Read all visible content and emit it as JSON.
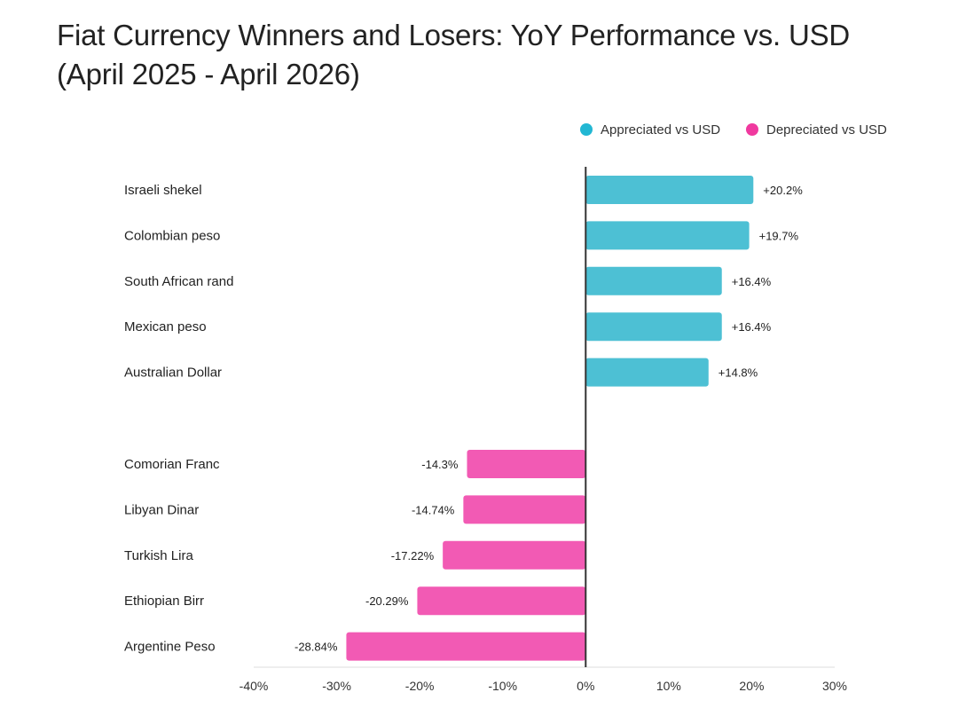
{
  "title_line1": "Fiat Currency Winners and Losers: YoY Performance vs. USD",
  "title_line2": "(April 2025 - April 2026)",
  "colors": {
    "appreciated": "#4dc0d4",
    "depreciated": "#f25ab4",
    "legend_appreciated": "#22b7d3",
    "legend_depreciated": "#f0399f",
    "zero_line": "#333333",
    "axis": "#dddddd"
  },
  "chart_data": {
    "type": "bar",
    "orientation": "horizontal",
    "title": "Fiat Currency Winners and Losers: YoY Performance vs. USD (April 2025 - April 2026)",
    "legend": {
      "placement": "top-right",
      "entries": [
        {
          "label": "Appreciated vs USD",
          "color_key": "legend_appreciated"
        },
        {
          "label": "Depreciated vs USD",
          "color_key": "legend_depreciated"
        }
      ]
    },
    "categories": [
      {
        "name": "Israeli shekel",
        "value": 20.2,
        "label": "+20.2%",
        "group": "appreciated"
      },
      {
        "name": "Colombian peso",
        "value": 19.7,
        "label": "+19.7%",
        "group": "appreciated"
      },
      {
        "name": "South African rand",
        "value": 16.4,
        "label": "+16.4%",
        "group": "appreciated"
      },
      {
        "name": "Mexican peso",
        "value": 16.4,
        "label": "+16.4%",
        "group": "appreciated"
      },
      {
        "name": "Australian Dollar",
        "value": 14.8,
        "label": "+14.8%",
        "group": "appreciated"
      },
      {
        "name": "Comorian Franc",
        "value": -14.3,
        "label": "-14.3%",
        "group": "depreciated"
      },
      {
        "name": "Libyan Dinar",
        "value": -14.74,
        "label": "-14.74%",
        "group": "depreciated"
      },
      {
        "name": "Turkish Lira",
        "value": -17.22,
        "label": "-17.22%",
        "group": "depreciated"
      },
      {
        "name": "Ethiopian Birr",
        "value": -20.29,
        "label": "-20.29%",
        "group": "depreciated"
      },
      {
        "name": "Argentine Peso",
        "value": -28.84,
        "label": "-28.84%",
        "group": "depreciated"
      }
    ],
    "xlim": [
      -40,
      30
    ],
    "xticks": [
      -40,
      -30,
      -20,
      -10,
      0,
      10,
      20,
      30
    ],
    "xtick_labels": [
      "-40%",
      "-30%",
      "-20%",
      "-10%",
      "0%",
      "10%",
      "20%",
      "30%"
    ],
    "grid": false
  }
}
